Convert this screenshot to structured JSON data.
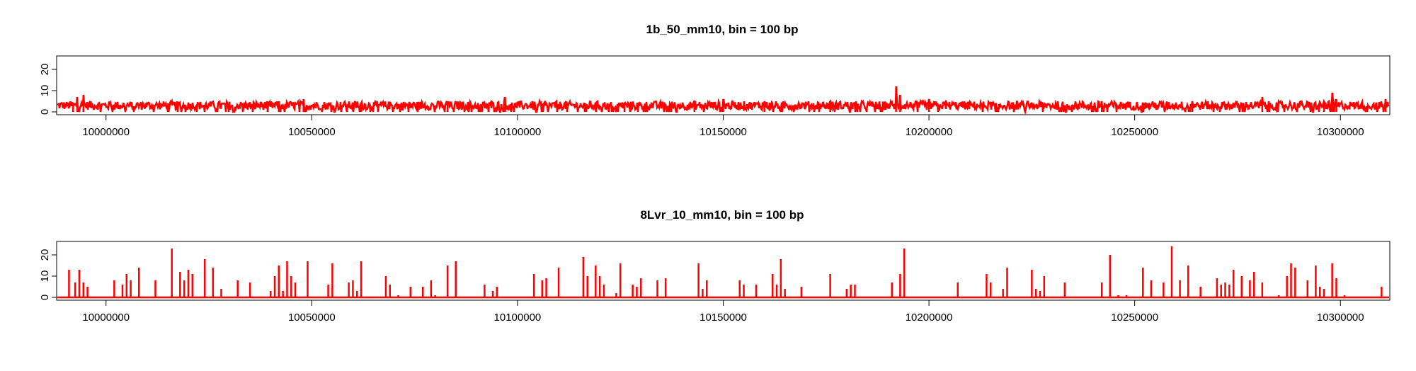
{
  "figure": {
    "background": "#ffffff",
    "series_color": "#ff0000"
  },
  "chart_data": [
    {
      "type": "line",
      "title": "1b_50_mm10, bin = 100 bp",
      "xlabel": "",
      "ylabel": "",
      "xlim": [
        9988000,
        10312000
      ],
      "ylim": [
        0,
        25
      ],
      "x_ticks": [
        10000000,
        10050000,
        10100000,
        10150000,
        10200000,
        10250000,
        10300000
      ],
      "x_tick_labels": [
        "10000000",
        "10050000",
        "10100000",
        "10150000",
        "10200000",
        "10250000",
        "10300000"
      ],
      "y_ticks": [
        0,
        10,
        20
      ],
      "y_tick_labels": [
        "0",
        "10",
        "20"
      ],
      "baseline": 1,
      "noise_max": 4,
      "peaks": [
        [
          9993000,
          7
        ],
        [
          9994500,
          8
        ],
        [
          9992000,
          4
        ],
        [
          10015000,
          4
        ],
        [
          10042000,
          5
        ],
        [
          10048000,
          6
        ],
        [
          10062000,
          4
        ],
        [
          10083000,
          5
        ],
        [
          10097000,
          7
        ],
        [
          10126000,
          4
        ],
        [
          10143000,
          5
        ],
        [
          10150000,
          6
        ],
        [
          10160000,
          5
        ],
        [
          10176000,
          5
        ],
        [
          10192000,
          12
        ],
        [
          10193000,
          8
        ],
        [
          10200000,
          6
        ],
        [
          10242000,
          5
        ],
        [
          10264000,
          5
        ],
        [
          10281000,
          7
        ],
        [
          10296000,
          5
        ],
        [
          10298000,
          9
        ],
        [
          10299000,
          6
        ],
        [
          10311000,
          6
        ]
      ]
    },
    {
      "type": "bar",
      "title": "8Lvr_10_mm10, bin = 100 bp",
      "xlabel": "",
      "ylabel": "",
      "xlim": [
        9988000,
        10312000
      ],
      "ylim": [
        0,
        25
      ],
      "x_ticks": [
        10000000,
        10050000,
        10100000,
        10150000,
        10200000,
        10250000,
        10300000
      ],
      "x_tick_labels": [
        "10000000",
        "10050000",
        "10100000",
        "10150000",
        "10200000",
        "10250000",
        "10300000"
      ],
      "y_ticks": [
        0,
        10,
        20
      ],
      "y_tick_labels": [
        "0",
        "10",
        "20"
      ],
      "peaks": [
        [
          9991000,
          13
        ],
        [
          9992500,
          7
        ],
        [
          9993500,
          13
        ],
        [
          9994500,
          7
        ],
        [
          9995500,
          5
        ],
        [
          10002000,
          8
        ],
        [
          10004000,
          6
        ],
        [
          10005000,
          11
        ],
        [
          10006000,
          8
        ],
        [
          10008000,
          14
        ],
        [
          10012000,
          8
        ],
        [
          10016000,
          23
        ],
        [
          10018000,
          12
        ],
        [
          10019000,
          8
        ],
        [
          10020000,
          13
        ],
        [
          10021000,
          11
        ],
        [
          10024000,
          18
        ],
        [
          10026000,
          14
        ],
        [
          10028000,
          4
        ],
        [
          10032000,
          8
        ],
        [
          10035000,
          7
        ],
        [
          10040000,
          3
        ],
        [
          10041000,
          10
        ],
        [
          10042000,
          15
        ],
        [
          10043000,
          3
        ],
        [
          10044000,
          17
        ],
        [
          10045000,
          10
        ],
        [
          10046000,
          7
        ],
        [
          10049000,
          17
        ],
        [
          10054000,
          6
        ],
        [
          10055000,
          16
        ],
        [
          10059000,
          7
        ],
        [
          10060000,
          8
        ],
        [
          10061000,
          3
        ],
        [
          10062000,
          17
        ],
        [
          10068000,
          10
        ],
        [
          10069000,
          6
        ],
        [
          10071000,
          1
        ],
        [
          10074000,
          5
        ],
        [
          10077000,
          5
        ],
        [
          10079000,
          8
        ],
        [
          10080000,
          1
        ],
        [
          10083000,
          15
        ],
        [
          10085000,
          17
        ],
        [
          10092000,
          6
        ],
        [
          10094000,
          3
        ],
        [
          10095000,
          5
        ],
        [
          10104000,
          11
        ],
        [
          10106000,
          8
        ],
        [
          10107000,
          9
        ],
        [
          10110000,
          14
        ],
        [
          10116000,
          19
        ],
        [
          10117000,
          10
        ],
        [
          10119000,
          15
        ],
        [
          10120000,
          10
        ],
        [
          10121000,
          6
        ],
        [
          10124000,
          2
        ],
        [
          10125000,
          16
        ],
        [
          10128000,
          6
        ],
        [
          10129000,
          5
        ],
        [
          10130000,
          9
        ],
        [
          10134000,
          8
        ],
        [
          10136000,
          9
        ],
        [
          10144000,
          16
        ],
        [
          10145000,
          4
        ],
        [
          10146000,
          8
        ],
        [
          10154000,
          8
        ],
        [
          10155000,
          6
        ],
        [
          10158000,
          6
        ],
        [
          10162000,
          11
        ],
        [
          10163000,
          6
        ],
        [
          10164000,
          18
        ],
        [
          10165000,
          4
        ],
        [
          10169000,
          5
        ],
        [
          10176000,
          11
        ],
        [
          10180000,
          4
        ],
        [
          10181000,
          6
        ],
        [
          10182000,
          6
        ],
        [
          10191000,
          7
        ],
        [
          10193000,
          11
        ],
        [
          10194000,
          23
        ],
        [
          10207000,
          7
        ],
        [
          10214000,
          11
        ],
        [
          10215000,
          7
        ],
        [
          10218000,
          4
        ],
        [
          10219000,
          14
        ],
        [
          10225000,
          13
        ],
        [
          10226000,
          4
        ],
        [
          10227000,
          3
        ],
        [
          10228000,
          10
        ],
        [
          10233000,
          7
        ],
        [
          10242000,
          7
        ],
        [
          10244000,
          20
        ],
        [
          10246000,
          1
        ],
        [
          10248000,
          1
        ],
        [
          10252000,
          14
        ],
        [
          10254000,
          8
        ],
        [
          10257000,
          7
        ],
        [
          10259000,
          24
        ],
        [
          10261000,
          8
        ],
        [
          10263000,
          15
        ],
        [
          10266000,
          5
        ],
        [
          10270000,
          9
        ],
        [
          10271000,
          6
        ],
        [
          10272000,
          7
        ],
        [
          10273000,
          6
        ],
        [
          10274000,
          13
        ],
        [
          10276000,
          10
        ],
        [
          10278000,
          8
        ],
        [
          10279000,
          12
        ],
        [
          10281000,
          7
        ],
        [
          10285000,
          1
        ],
        [
          10287000,
          10
        ],
        [
          10288000,
          16
        ],
        [
          10289000,
          14
        ],
        [
          10292000,
          8
        ],
        [
          10294000,
          15
        ],
        [
          10295000,
          5
        ],
        [
          10296000,
          4
        ],
        [
          10298000,
          16
        ],
        [
          10299000,
          9
        ],
        [
          10301000,
          1
        ],
        [
          10310000,
          5
        ]
      ]
    }
  ]
}
